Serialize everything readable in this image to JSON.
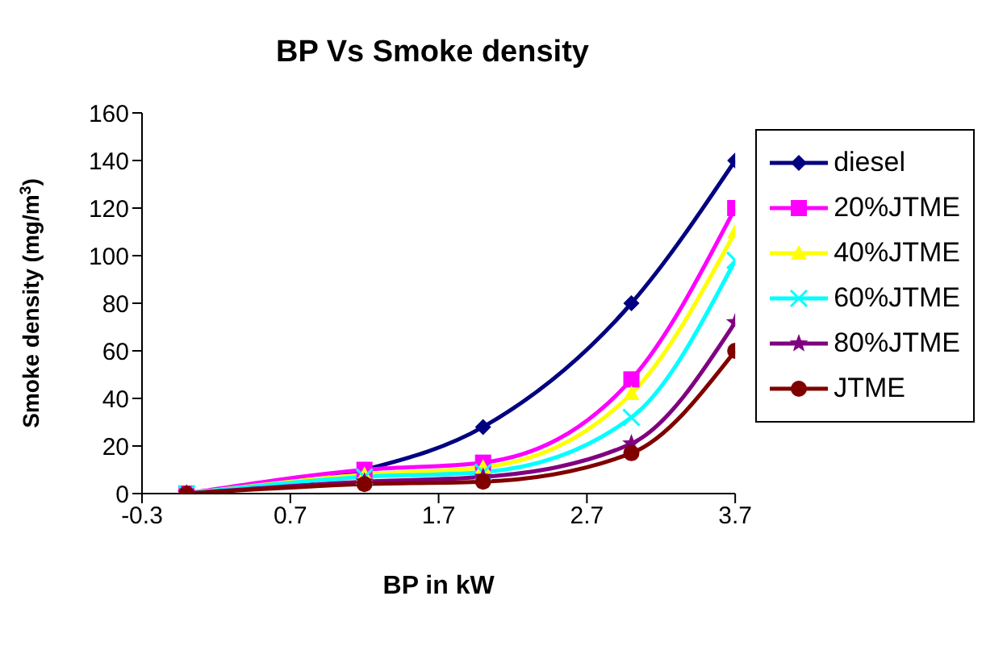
{
  "chart_data": {
    "type": "line",
    "title": "BP Vs Smoke density",
    "xlabel": "BP in kW",
    "ylabel": "Smoke density (mg/m$^{3}$)",
    "x": [
      0,
      1.2,
      2.0,
      3.0,
      3.7
    ],
    "series": [
      {
        "name": "diesel",
        "color": "#000080",
        "marker": "diamond",
        "values": [
          0,
          10,
          28,
          80,
          140
        ]
      },
      {
        "name": "20%JTME",
        "color": "#ff00ff",
        "marker": "square",
        "values": [
          0,
          10,
          13,
          48,
          120
        ]
      },
      {
        "name": "40%JTME",
        "color": "#ffff00",
        "marker": "triangle",
        "values": [
          0,
          8,
          11,
          42,
          110
        ]
      },
      {
        "name": "60%JTME",
        "color": "#00ffff",
        "marker": "cross",
        "values": [
          0,
          7,
          9,
          32,
          98
        ]
      },
      {
        "name": "80%JTME",
        "color": "#800080",
        "marker": "star",
        "values": [
          0,
          5,
          7,
          21,
          72
        ]
      },
      {
        "name": "JTME",
        "color": "#800000",
        "marker": "circle",
        "values": [
          0,
          4,
          5,
          17,
          60
        ]
      }
    ],
    "xlim": [
      -0.3,
      3.7
    ],
    "xticks": [
      -0.3,
      0.7,
      1.7,
      2.7,
      3.7
    ],
    "ylim": [
      0,
      160
    ],
    "yticks": [
      0,
      20,
      40,
      60,
      80,
      100,
      120,
      140,
      160
    ],
    "grid": false,
    "legend": "right",
    "line_style": "solid"
  }
}
